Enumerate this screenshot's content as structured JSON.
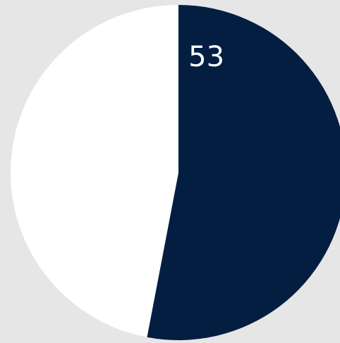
{
  "chart_data": {
    "type": "pie",
    "categories": [
      null,
      null
    ],
    "values": [
      53,
      47
    ],
    "colors": [
      "#041e42",
      "#ffffff"
    ],
    "labels_shown": [
      true,
      false
    ]
  }
}
